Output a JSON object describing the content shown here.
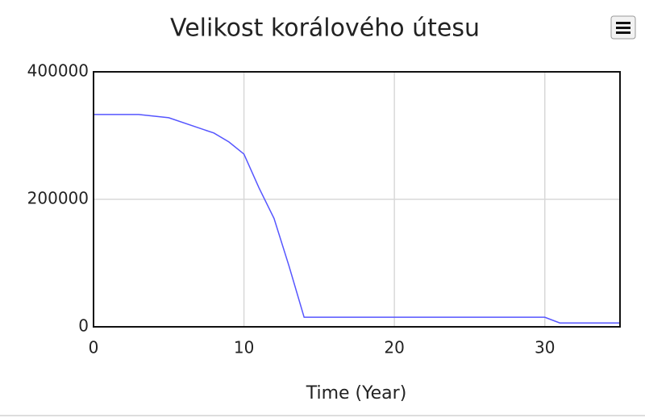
{
  "chart_data": {
    "type": "line",
    "title": "Velikost korálového útesu",
    "x_label": "Time (Year)",
    "x": [
      0,
      3,
      5,
      8,
      9,
      10,
      11,
      12,
      13,
      14,
      30,
      31,
      35
    ],
    "series": [
      {
        "color": "#5555ff",
        "values": [
          333000,
          333000,
          328000,
          304000,
          290000,
          271000,
          218000,
          170000,
          95000,
          15000,
          15000,
          6000,
          6000
        ]
      }
    ],
    "xlim": [
      0,
      35
    ],
    "xticks": [
      0,
      10,
      20,
      30
    ],
    "ylim": [
      0,
      400000
    ],
    "yticks": [
      0,
      200000,
      400000
    ],
    "grid": true
  }
}
